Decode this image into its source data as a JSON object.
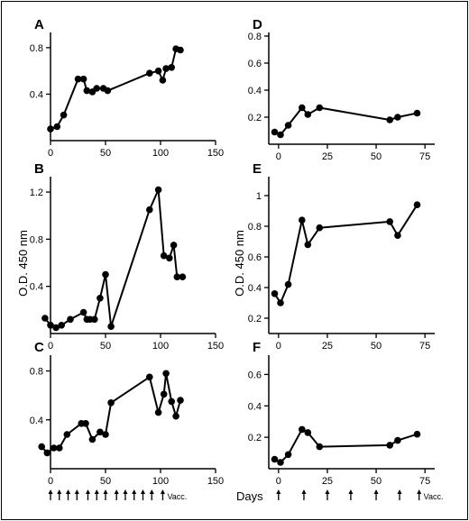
{
  "chart_data": [
    {
      "id": "A",
      "type": "line",
      "panel_label": "A",
      "xlim": [
        0,
        150
      ],
      "ylim": [
        0,
        0.9
      ],
      "xticks": [
        0,
        50,
        100,
        150
      ],
      "yticks": [
        0.4,
        0.8
      ],
      "x": [
        0,
        6,
        12,
        25,
        30,
        33,
        38,
        42,
        48,
        52,
        90,
        98,
        102,
        105,
        110,
        114,
        118
      ],
      "y": [
        0.1,
        0.12,
        0.22,
        0.53,
        0.53,
        0.43,
        0.42,
        0.45,
        0.45,
        0.43,
        0.58,
        0.6,
        0.52,
        0.62,
        0.63,
        0.79,
        0.78
      ]
    },
    {
      "id": "B",
      "type": "line",
      "panel_label": "B",
      "xlim": [
        0,
        150
      ],
      "ylim": [
        0,
        1.3
      ],
      "xticks": [
        0,
        50,
        100,
        150
      ],
      "yticks": [
        0.4,
        0.8,
        1.2
      ],
      "x": [
        -5,
        0,
        5,
        10,
        18,
        30,
        33,
        36,
        40,
        45,
        50,
        55,
        90,
        98,
        103,
        108,
        112,
        115,
        120
      ],
      "y": [
        0.13,
        0.07,
        0.05,
        0.07,
        0.12,
        0.18,
        0.12,
        0.12,
        0.12,
        0.3,
        0.5,
        0.06,
        1.05,
        1.22,
        0.66,
        0.64,
        0.75,
        0.48,
        0.48
      ]
    },
    {
      "id": "C",
      "type": "line",
      "panel_label": "C",
      "xlim": [
        0,
        150
      ],
      "ylim": [
        0,
        0.9
      ],
      "xticks": [
        0,
        50,
        100,
        150
      ],
      "yticks": [
        0.4,
        0.8
      ],
      "x": [
        -8,
        -3,
        3,
        8,
        15,
        28,
        32,
        38,
        45,
        50,
        55,
        90,
        98,
        103,
        105,
        110,
        114,
        118
      ],
      "y": [
        0.18,
        0.13,
        0.17,
        0.17,
        0.28,
        0.37,
        0.37,
        0.24,
        0.3,
        0.28,
        0.54,
        0.75,
        0.46,
        0.61,
        0.78,
        0.55,
        0.43,
        0.56
      ],
      "vacc_days": [
        0,
        8,
        16,
        24,
        34,
        42,
        50,
        60,
        68,
        76,
        84,
        92,
        102
      ],
      "vacc_label": "Vacc."
    },
    {
      "id": "D",
      "type": "line",
      "panel_label": "D",
      "xlim": [
        -5,
        80
      ],
      "ylim": [
        0,
        0.8
      ],
      "xticks": [
        0,
        25,
        50,
        75
      ],
      "yticks": [
        0.2,
        0.4,
        0.6,
        0.8
      ],
      "x": [
        -2,
        1,
        5,
        12,
        15,
        21,
        57,
        61,
        71
      ],
      "y": [
        0.09,
        0.07,
        0.14,
        0.27,
        0.22,
        0.27,
        0.18,
        0.2,
        0.23
      ]
    },
    {
      "id": "E",
      "type": "line",
      "panel_label": "E",
      "xlim": [
        -5,
        80
      ],
      "ylim": [
        0.1,
        1.1
      ],
      "xticks": [
        0,
        25,
        50,
        75
      ],
      "yticks": [
        0.2,
        0.4,
        0.6,
        0.8,
        1.0
      ],
      "x": [
        -2,
        1,
        5,
        12,
        15,
        21,
        57,
        61,
        71
      ],
      "y": [
        0.36,
        0.3,
        0.42,
        0.84,
        0.68,
        0.79,
        0.83,
        0.74,
        0.94
      ]
    },
    {
      "id": "F",
      "type": "line",
      "panel_label": "F",
      "xlim": [
        -5,
        80
      ],
      "ylim": [
        0,
        0.7
      ],
      "xticks": [
        0,
        25,
        50,
        75
      ],
      "yticks": [
        0.2,
        0.4,
        0.6
      ],
      "x": [
        -2,
        1,
        5,
        12,
        15,
        21,
        57,
        61,
        71
      ],
      "y": [
        0.06,
        0.04,
        0.09,
        0.25,
        0.23,
        0.14,
        0.15,
        0.18,
        0.22
      ],
      "vacc_days": [
        0,
        13,
        25,
        37,
        50,
        62,
        72
      ],
      "vacc_label": "Vacc."
    }
  ],
  "y_axis_label": "O.D. 450 nm",
  "x_axis_label": "Days"
}
